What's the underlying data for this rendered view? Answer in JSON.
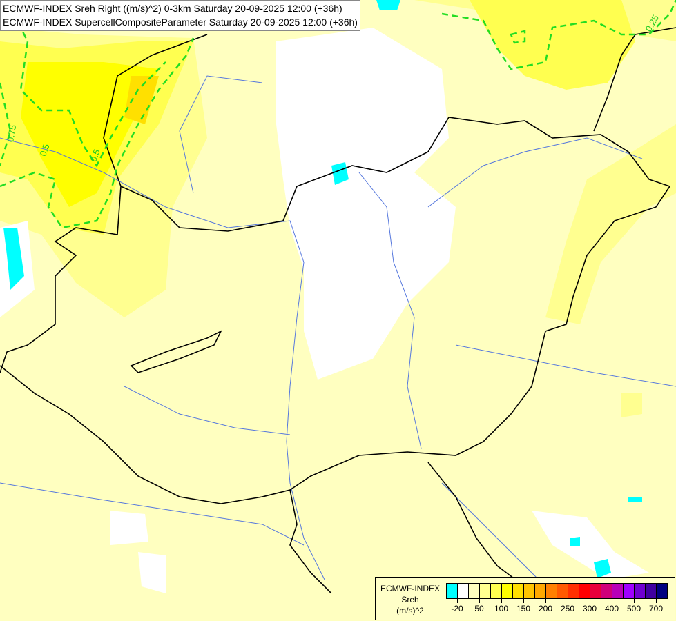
{
  "title": {
    "line1": "ECMWF-INDEX Sreh Right ((m/s)^2) 0-3km Saturday 20-09-2025 12:00 (+36h)",
    "line2": "ECMWF-INDEX SupercellCompositeParameter Saturday 20-09-2025 12:00 (+36h)"
  },
  "map": {
    "contour_labels": [
      "0.5",
      "0.5",
      "0.75",
      "0.25"
    ],
    "contour_color": "#22dd22",
    "border_color": "#000000",
    "river_color": "#5577dd"
  },
  "legend": {
    "title": "ECMWF-INDEX",
    "variable": "Sreh",
    "unit": "(m/s)^2",
    "colors": [
      "#00ffff",
      "#ffffff",
      "#ffffc0",
      "#ffff90",
      "#ffff50",
      "#ffff00",
      "#ffe000",
      "#ffc400",
      "#ffa800",
      "#ff8000",
      "#ff5a00",
      "#ff3000",
      "#ff0000",
      "#e8003c",
      "#d0007a",
      "#b800b8",
      "#a000ff",
      "#7000d0",
      "#4000a0",
      "#000080"
    ],
    "ticks": [
      {
        "label": "-20",
        "boundary": 1
      },
      {
        "label": "50",
        "boundary": 3
      },
      {
        "label": "100",
        "boundary": 5
      },
      {
        "label": "150",
        "boundary": 7
      },
      {
        "label": "200",
        "boundary": 9
      },
      {
        "label": "250",
        "boundary": 11
      },
      {
        "label": "300",
        "boundary": 13
      },
      {
        "label": "400",
        "boundary": 15
      },
      {
        "label": "500",
        "boundary": 17
      },
      {
        "label": "700",
        "boundary": 19
      }
    ]
  }
}
